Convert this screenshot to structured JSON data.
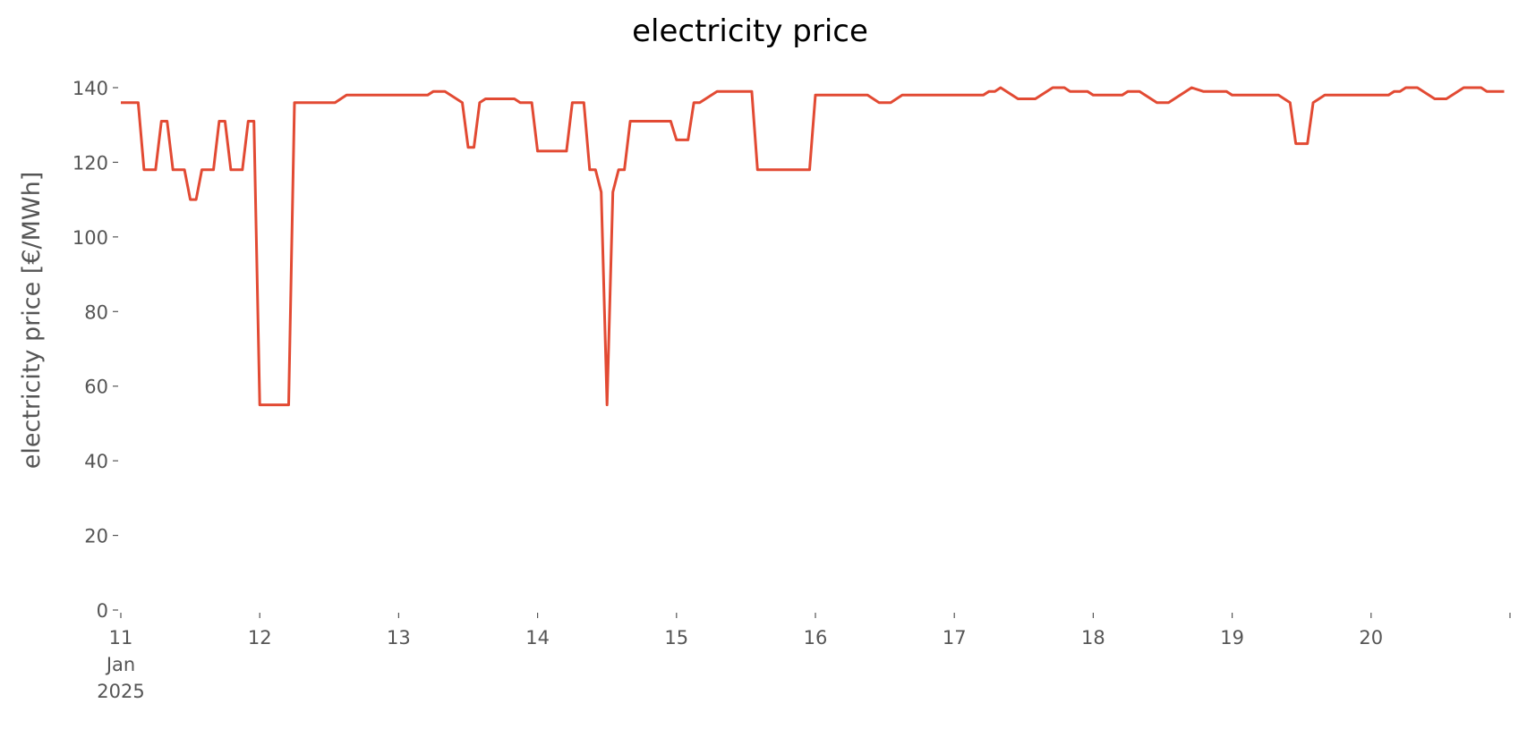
{
  "chart_data": {
    "type": "line",
    "title": "electricity price",
    "ylabel": "electricity price [€/MWh]",
    "x": [
      11.0,
      11.125,
      11.167,
      11.25,
      11.292,
      11.333,
      11.375,
      11.458,
      11.5,
      11.542,
      11.583,
      11.667,
      11.708,
      11.75,
      11.792,
      11.875,
      11.917,
      11.958,
      12.0,
      12.208,
      12.25,
      12.542,
      12.625,
      13.208,
      13.25,
      13.333,
      13.458,
      13.5,
      13.542,
      13.583,
      13.625,
      13.833,
      13.875,
      13.958,
      14.0,
      14.208,
      14.25,
      14.333,
      14.375,
      14.417,
      14.458,
      14.5,
      14.542,
      14.583,
      14.625,
      14.667,
      14.958,
      15.0,
      15.083,
      15.125,
      15.167,
      15.292,
      15.542,
      15.583,
      15.958,
      16.0,
      16.375,
      16.458,
      16.542,
      16.625,
      17.208,
      17.25,
      17.292,
      17.333,
      17.458,
      17.583,
      17.708,
      17.792,
      17.833,
      17.958,
      18.0,
      18.208,
      18.25,
      18.333,
      18.458,
      18.542,
      18.708,
      18.792,
      18.958,
      19.0,
      19.333,
      19.417,
      19.458,
      19.542,
      19.583,
      19.667,
      20.125,
      20.167,
      20.208,
      20.25,
      20.333,
      20.458,
      20.542,
      20.667,
      20.792,
      20.833,
      20.958
    ],
    "series": [
      {
        "name": "electricity price",
        "color": "#e24a33",
        "values": [
          136,
          136,
          118,
          118,
          131,
          131,
          118,
          118,
          110,
          110,
          118,
          118,
          131,
          131,
          118,
          118,
          131,
          131,
          55,
          55,
          136,
          136,
          138,
          138,
          139,
          139,
          136,
          124,
          124,
          136,
          137,
          137,
          136,
          136,
          123,
          123,
          136,
          136,
          118,
          118,
          112,
          55,
          112,
          118,
          118,
          131,
          131,
          126,
          126,
          136,
          136,
          139,
          139,
          118,
          118,
          138,
          138,
          136,
          136,
          138,
          138,
          139,
          139,
          140,
          137,
          137,
          140,
          140,
          139,
          139,
          138,
          138,
          139,
          139,
          136,
          136,
          140,
          139,
          139,
          138,
          138,
          136,
          125,
          125,
          136,
          138,
          138,
          139,
          139,
          140,
          140,
          137,
          137,
          140,
          140,
          139,
          139
        ]
      }
    ],
    "xlim": [
      11,
      21
    ],
    "xticks": [
      {
        "value": 11,
        "label": [
          "11",
          "Jan",
          "2025"
        ]
      },
      12,
      13,
      14,
      15,
      16,
      17,
      18,
      19,
      20,
      {
        "value": 21,
        "label": null
      }
    ],
    "ylim": [
      0,
      140
    ],
    "yticks": [
      0,
      20,
      40,
      60,
      80,
      100,
      120,
      140
    ]
  }
}
